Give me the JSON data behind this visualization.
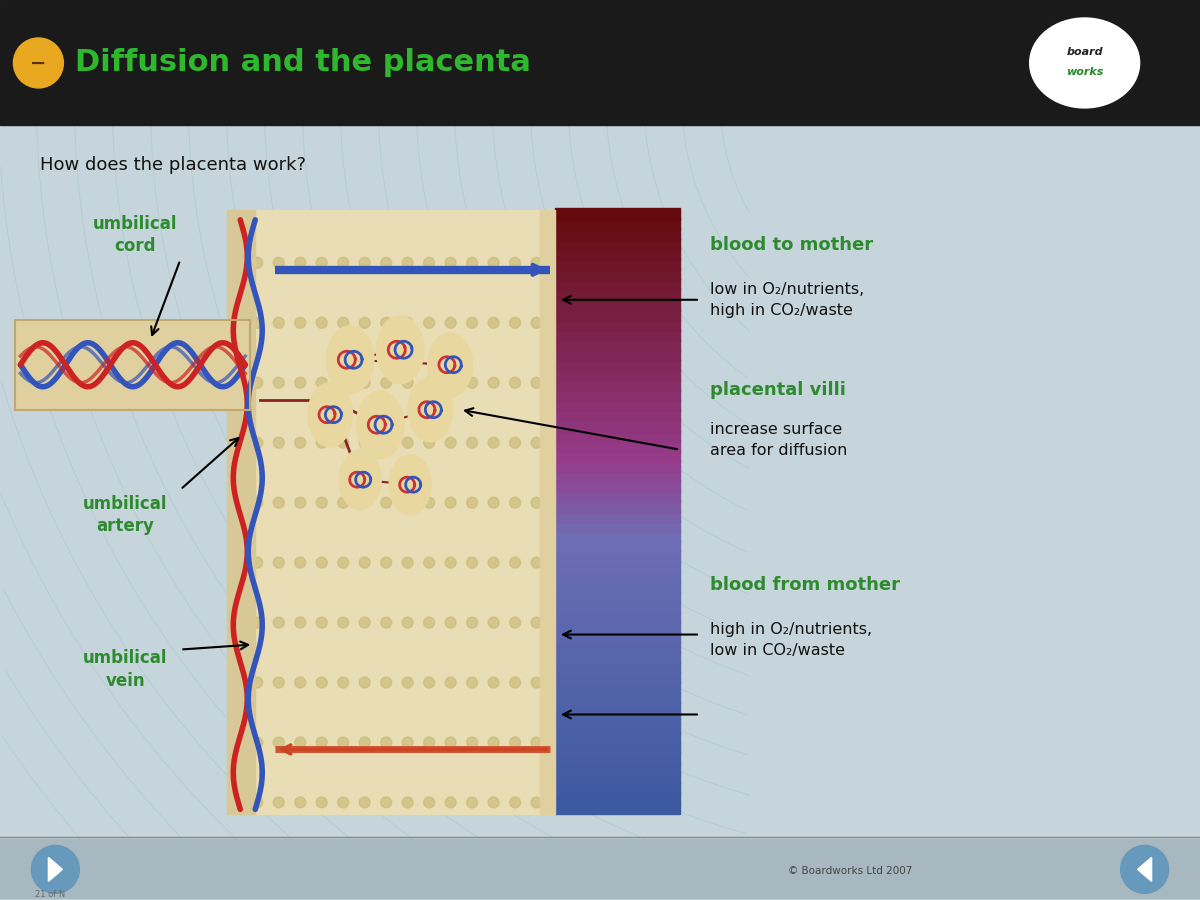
{
  "title": "Diffusion and the placenta",
  "subtitle": "How does the placenta work?",
  "bg_color": "#c8dce0",
  "title_color": "#ffffff",
  "title_bg": "#1a1a1a",
  "green_text_color": "#2d8a2d",
  "dark_green_text": "#1a6e1a",
  "black_text_color": "#111111",
  "labels": {
    "umbilical_cord": "umbilical\ncord",
    "umbilical_artery": "umbilical\nartery",
    "umbilical_vein": "umbilical\nvein",
    "blood_to_mother_title": "blood to mother",
    "blood_to_mother_body": "low in O₂/nutrients,\nhigh in CO₂/waste",
    "placental_villi_title": "placental villi",
    "placental_villi_body": "increase surface\narea for diffusion",
    "blood_from_mother_title": "blood from mother",
    "blood_from_mother_body": "high in O₂/nutrients,\nlow in CO₂/waste"
  },
  "copyright": "© Boardworks Ltd 2007"
}
